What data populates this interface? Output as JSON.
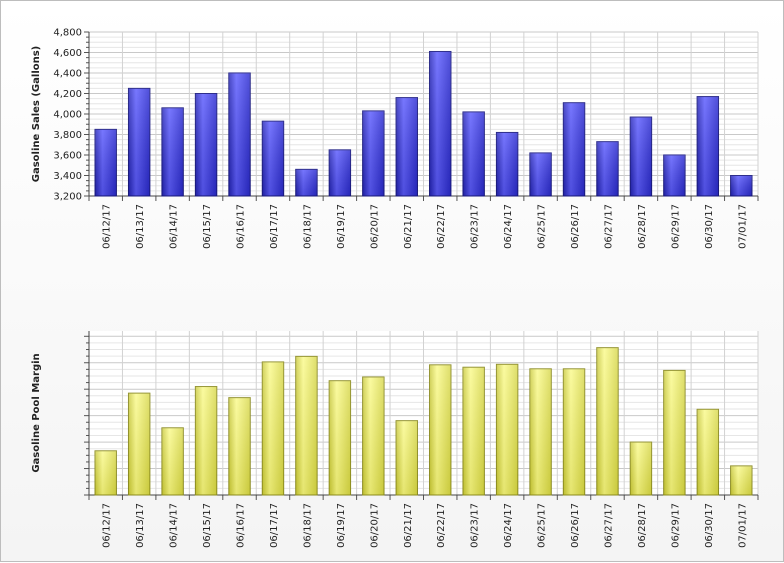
{
  "chart_data": [
    {
      "type": "bar",
      "title": "",
      "xlabel": "",
      "ylabel": "Gasoline Sales (Gallons)",
      "ylim": [
        3200,
        4800
      ],
      "ytick_step": 200,
      "ytick_labels": [
        "3,200",
        "3,400",
        "3,600",
        "3,800",
        "4,000",
        "4,200",
        "4,400",
        "4,600",
        "4,800"
      ],
      "grid": true,
      "color": "#3838e0",
      "categories": [
        "06/12/17",
        "06/13/17",
        "06/14/17",
        "06/15/17",
        "06/16/17",
        "06/17/17",
        "06/18/17",
        "06/19/17",
        "06/20/17",
        "06/21/17",
        "06/22/17",
        "06/23/17",
        "06/24/17",
        "06/25/17",
        "06/26/17",
        "06/27/17",
        "06/28/17",
        "06/29/17",
        "06/30/17",
        "07/01/17"
      ],
      "values": [
        3850,
        4250,
        4060,
        4200,
        4400,
        3930,
        3460,
        3650,
        4030,
        4160,
        4610,
        4020,
        3820,
        3620,
        4110,
        3730,
        3970,
        3600,
        4170,
        3400
      ]
    },
    {
      "type": "bar",
      "title": "",
      "xlabel": "",
      "ylabel": "Gasoline Pool Margin",
      "ylim": [
        0,
        6.2
      ],
      "ytick_step": 1,
      "ytick_labels": [],
      "grid": true,
      "color": "#e8e85a",
      "categories": [
        "06/12/17",
        "06/13/17",
        "06/14/17",
        "06/15/17",
        "06/16/17",
        "06/17/17",
        "06/18/17",
        "06/19/17",
        "06/20/17",
        "06/21/17",
        "06/22/17",
        "06/23/17",
        "06/24/17",
        "06/25/17",
        "06/26/17",
        "06/27/17",
        "06/28/17",
        "06/29/17",
        "06/30/17",
        "07/01/17"
      ],
      "values": [
        1.67,
        3.85,
        2.54,
        4.1,
        3.68,
        5.03,
        5.24,
        4.32,
        4.46,
        2.81,
        4.92,
        4.83,
        4.94,
        4.77,
        4.77,
        5.57,
        2.0,
        4.71,
        3.24,
        1.1
      ]
    }
  ]
}
